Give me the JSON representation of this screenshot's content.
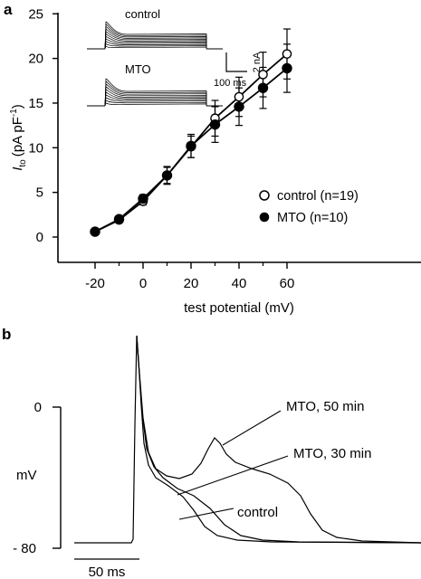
{
  "panel_a": {
    "letter": "a",
    "ylabel_main": "I",
    "ylabel_sub": "to",
    "ylabel_units": "(pA pF",
    "ylabel_sup": "-1",
    "ylabel_close": ")",
    "xlabel": "test potential (mV)",
    "inset": {
      "control_label": "control",
      "mto_label": "MTO",
      "scale_current": "2 nA",
      "scale_time": "100 ms"
    }
  },
  "panel_b": {
    "letter": "b",
    "ylabel": "mV",
    "ytick_top": "0",
    "ytick_bottom": "- 80",
    "scale_time": "50 ms",
    "labels": [
      "MTO, 50 min",
      "MTO, 30 min",
      "control"
    ]
  },
  "chart_data": [
    {
      "type": "scatter",
      "panel": "a",
      "xlabel": "test potential (mV)",
      "ylabel": "Ito (pA pF-1)",
      "xlim": [
        -30,
        70
      ],
      "ylim": [
        -2,
        25
      ],
      "x_ticks": [
        -20,
        0,
        20,
        40,
        60
      ],
      "x_tick_labels": [
        "-20",
        "0",
        "20",
        "40",
        "60"
      ],
      "y_ticks": [
        0,
        5,
        10,
        15,
        20,
        25
      ],
      "y_tick_labels": [
        "0",
        "5",
        "10",
        "15",
        "20",
        "25"
      ],
      "legend_position": "lower-right",
      "series": [
        {
          "name": "control (n=19)",
          "marker": "open-circle",
          "x": [
            -20,
            -10,
            0,
            10,
            20,
            30,
            40,
            50,
            60
          ],
          "y": [
            0.6,
            1.9,
            4.0,
            6.9,
            10.1,
            13.3,
            15.7,
            18.2,
            20.5
          ],
          "err": [
            0.15,
            0.25,
            0.4,
            0.9,
            1.2,
            2.0,
            2.2,
            2.5,
            2.8
          ]
        },
        {
          "name": "MTO (n=10)",
          "marker": "filled-circle",
          "x": [
            -20,
            -10,
            0,
            10,
            20,
            30,
            40,
            50,
            60
          ],
          "y": [
            0.6,
            2.0,
            4.3,
            6.9,
            10.2,
            12.6,
            14.6,
            16.7,
            18.9
          ],
          "err": [
            0.15,
            0.25,
            0.45,
            1.0,
            1.3,
            2.0,
            2.1,
            2.3,
            2.7
          ]
        }
      ]
    },
    {
      "type": "line",
      "panel": "b",
      "ylabel": "mV",
      "y_ticks": [
        0,
        -80
      ],
      "y_tick_labels": [
        "0",
        "- 80"
      ],
      "scale_bar": "50 ms",
      "series": [
        {
          "name": "control"
        },
        {
          "name": "MTO, 30 min"
        },
        {
          "name": "MTO, 50 min"
        }
      ]
    }
  ]
}
